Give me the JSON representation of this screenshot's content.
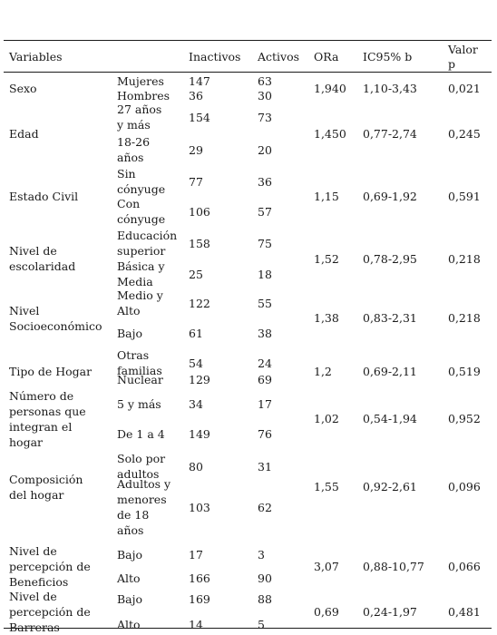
{
  "header": {
    "variables": "Variables",
    "inactivos": "Inactivos",
    "activos": "Activos",
    "ora": "ORa",
    "ic": "IC95% b",
    "valor_p": [
      "Valor",
      "p"
    ]
  },
  "groups": [
    {
      "variable": [
        "Sexo"
      ],
      "ora": "1,940",
      "ic": "1,10-3,43",
      "p": "0,021",
      "rows": [
        {
          "category": [
            "Mujeres"
          ],
          "inactivos": "147",
          "activos": "63"
        },
        {
          "category": [
            "Hombres"
          ],
          "inactivos": "36",
          "activos": "30"
        }
      ]
    },
    {
      "variable": [
        "Edad"
      ],
      "ora": "1,450",
      "ic": "0,77-2,74",
      "p": "0,245",
      "rows": [
        {
          "category": [
            "27 años",
            "y más"
          ],
          "inactivos": "154",
          "activos": "73"
        },
        {
          "category": [
            "18-26",
            "años"
          ],
          "inactivos": "29",
          "activos": "20"
        }
      ]
    },
    {
      "variable": [
        "Estado Civil"
      ],
      "ora": "1,15",
      "ic": "0,69-1,92",
      "p": "0,591",
      "rows": [
        {
          "category": [
            "Sin",
            "cónyuge"
          ],
          "inactivos": "77",
          "activos": "36"
        },
        {
          "category": [
            "Con",
            "cónyuge"
          ],
          "inactivos": "106",
          "activos": "57"
        }
      ]
    },
    {
      "variable": [
        "Nivel de",
        "escolaridad"
      ],
      "ora": "1,52",
      "ic": "0,78-2,95",
      "p": "0,218",
      "rows": [
        {
          "category": [
            "Educación",
            " superior"
          ],
          "inactivos": "158",
          "activos": "75"
        },
        {
          "category": [
            "Básica y",
            "Media"
          ],
          "inactivos": "25",
          "activos": "18"
        }
      ]
    },
    {
      "variable": [
        "Nivel",
        "Socioeconómico"
      ],
      "ora": "1,38",
      "ic": "0,83-2,31",
      "p": "0,218",
      "rows": [
        {
          "category": [
            "Medio y",
            "Alto"
          ],
          "inactivos": "122",
          "activos": "55"
        },
        {
          "category": [
            "Bajo"
          ],
          "inactivos": "61",
          "activos": "38"
        }
      ]
    },
    {
      "variable": [
        "Tipo de Hogar"
      ],
      "ora": "1,2",
      "ic": "0,69-2,11",
      "p": "0,519",
      "rows": [
        {
          "category": [
            "Otras",
            "familias"
          ],
          "inactivos": "54",
          "activos": "24"
        },
        {
          "category": [
            "Nuclear"
          ],
          "inactivos": "129",
          "activos": "69"
        }
      ]
    },
    {
      "variable": [
        "Número de",
        "personas que",
        "integran el",
        "hogar"
      ],
      "ora": "1,02",
      "ic": "0,54-1,94",
      "p": "0,952",
      "rows": [
        {
          "category": [
            "5 y más"
          ],
          "inactivos": "34",
          "activos": "17"
        },
        {
          "category": [
            "De 1 a 4"
          ],
          "inactivos": "149",
          "activos": "76"
        }
      ]
    },
    {
      "variable": [
        "Composición",
        "del hogar"
      ],
      "ora": "1,55",
      "ic": "0,92-2,61",
      "p": "0,096",
      "rows": [
        {
          "category": [
            "Solo por",
            "adultos"
          ],
          "inactivos": "80",
          "activos": "31"
        },
        {
          "category": [
            "Adultos y",
            "menores",
            "de 18",
            "años"
          ],
          "inactivos": "103",
          "activos": "62"
        }
      ]
    },
    {
      "variable": [
        "Nivel de",
        "percepción de",
        "Beneficios"
      ],
      "ora": "3,07",
      "ic": "0,88-10,77",
      "p": "0,066",
      "rows": [
        {
          "category": [
            "Bajo"
          ],
          "inactivos": "17",
          "activos": "3"
        },
        {
          "category": [
            "Alto"
          ],
          "inactivos": "166",
          "activos": "90"
        }
      ]
    },
    {
      "variable": [
        "Nivel de",
        "percepción de",
        "Barreras"
      ],
      "ora": "0,69",
      "ic": "0,24-1,97",
      "p": "0,481",
      "rows": [
        {
          "category": [
            "Bajo"
          ],
          "inactivos": "169",
          "activos": "88"
        },
        {
          "category": [
            "Alto"
          ],
          "inactivos": "14",
          "activos": "5"
        }
      ]
    }
  ]
}
